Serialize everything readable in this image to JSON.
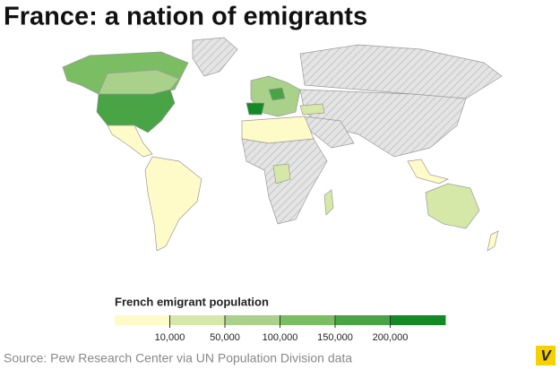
{
  "title": "France: a nation of emigrants",
  "legend": {
    "title": "French emigrant population",
    "colors": [
      "#fffbc8",
      "#d6e8a8",
      "#a9d189",
      "#7bbd63",
      "#48a445",
      "#138a26"
    ],
    "ticks": [
      {
        "value": 10000,
        "label": "10,000"
      },
      {
        "value": 50000,
        "label": "50,000"
      },
      {
        "value": 100000,
        "label": "100,000"
      },
      {
        "value": 150000,
        "label": "150,000"
      },
      {
        "value": 200000,
        "label": "200,000"
      }
    ]
  },
  "source": "Source: Pew Research Center via UN Population Division data",
  "logo": "V"
}
